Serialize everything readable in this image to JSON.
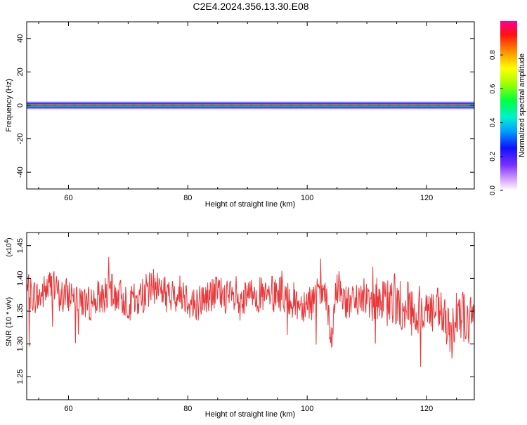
{
  "title": "C2E4.2024.356.13.30.E08",
  "chart_data": [
    {
      "type": "heatmap",
      "xlabel": "Height of straight line (km)",
      "ylabel": "Frequency (Hz)",
      "xlim": [
        53,
        128
      ],
      "ylim": [
        -50,
        50
      ],
      "x_ticks": [
        60,
        80,
        100,
        120
      ],
      "y_ticks": [
        -40,
        -20,
        0,
        20,
        40
      ],
      "band_center_hz": 0,
      "band_halfwidth_hz": 2,
      "colorbar": {
        "label": "Normalized spectral amplitude",
        "range": [
          0,
          1
        ],
        "ticks": [
          0.0,
          0.2,
          0.4,
          0.6,
          0.8
        ]
      }
    },
    {
      "type": "line",
      "xlabel": "Height of straight line (km)",
      "ylabel": "SNR (10 * v/v)",
      "y_multiplier": "(x10",
      "y_multiplier_exp": "4",
      "y_multiplier_close": ")",
      "xlim": [
        53,
        128
      ],
      "ylim": [
        1.215,
        1.47
      ],
      "x_ticks": [
        60,
        80,
        100,
        120
      ],
      "y_ticks": [
        1.25,
        1.3,
        1.35,
        1.4,
        1.45
      ],
      "color": "#e8383a",
      "series": [
        {
          "x": [
            53,
            55,
            57,
            59,
            61,
            63,
            65,
            67,
            69,
            71,
            73,
            75,
            77,
            79,
            81,
            83,
            85,
            87,
            89,
            91,
            93,
            95,
            97,
            99,
            101,
            103,
            104,
            105,
            107,
            109,
            111,
            113,
            115,
            116,
            117,
            118,
            119,
            121,
            123,
            124,
            125,
            127,
            128
          ],
          "y": [
            1.38,
            1.37,
            1.39,
            1.37,
            1.38,
            1.36,
            1.37,
            1.38,
            1.37,
            1.36,
            1.38,
            1.39,
            1.37,
            1.38,
            1.36,
            1.37,
            1.38,
            1.37,
            1.36,
            1.38,
            1.37,
            1.38,
            1.37,
            1.36,
            1.37,
            1.38,
            1.3,
            1.39,
            1.36,
            1.37,
            1.38,
            1.36,
            1.37,
            1.35,
            1.37,
            1.33,
            1.36,
            1.35,
            1.34,
            1.3,
            1.36,
            1.33,
            1.34
          ]
        }
      ]
    }
  ]
}
